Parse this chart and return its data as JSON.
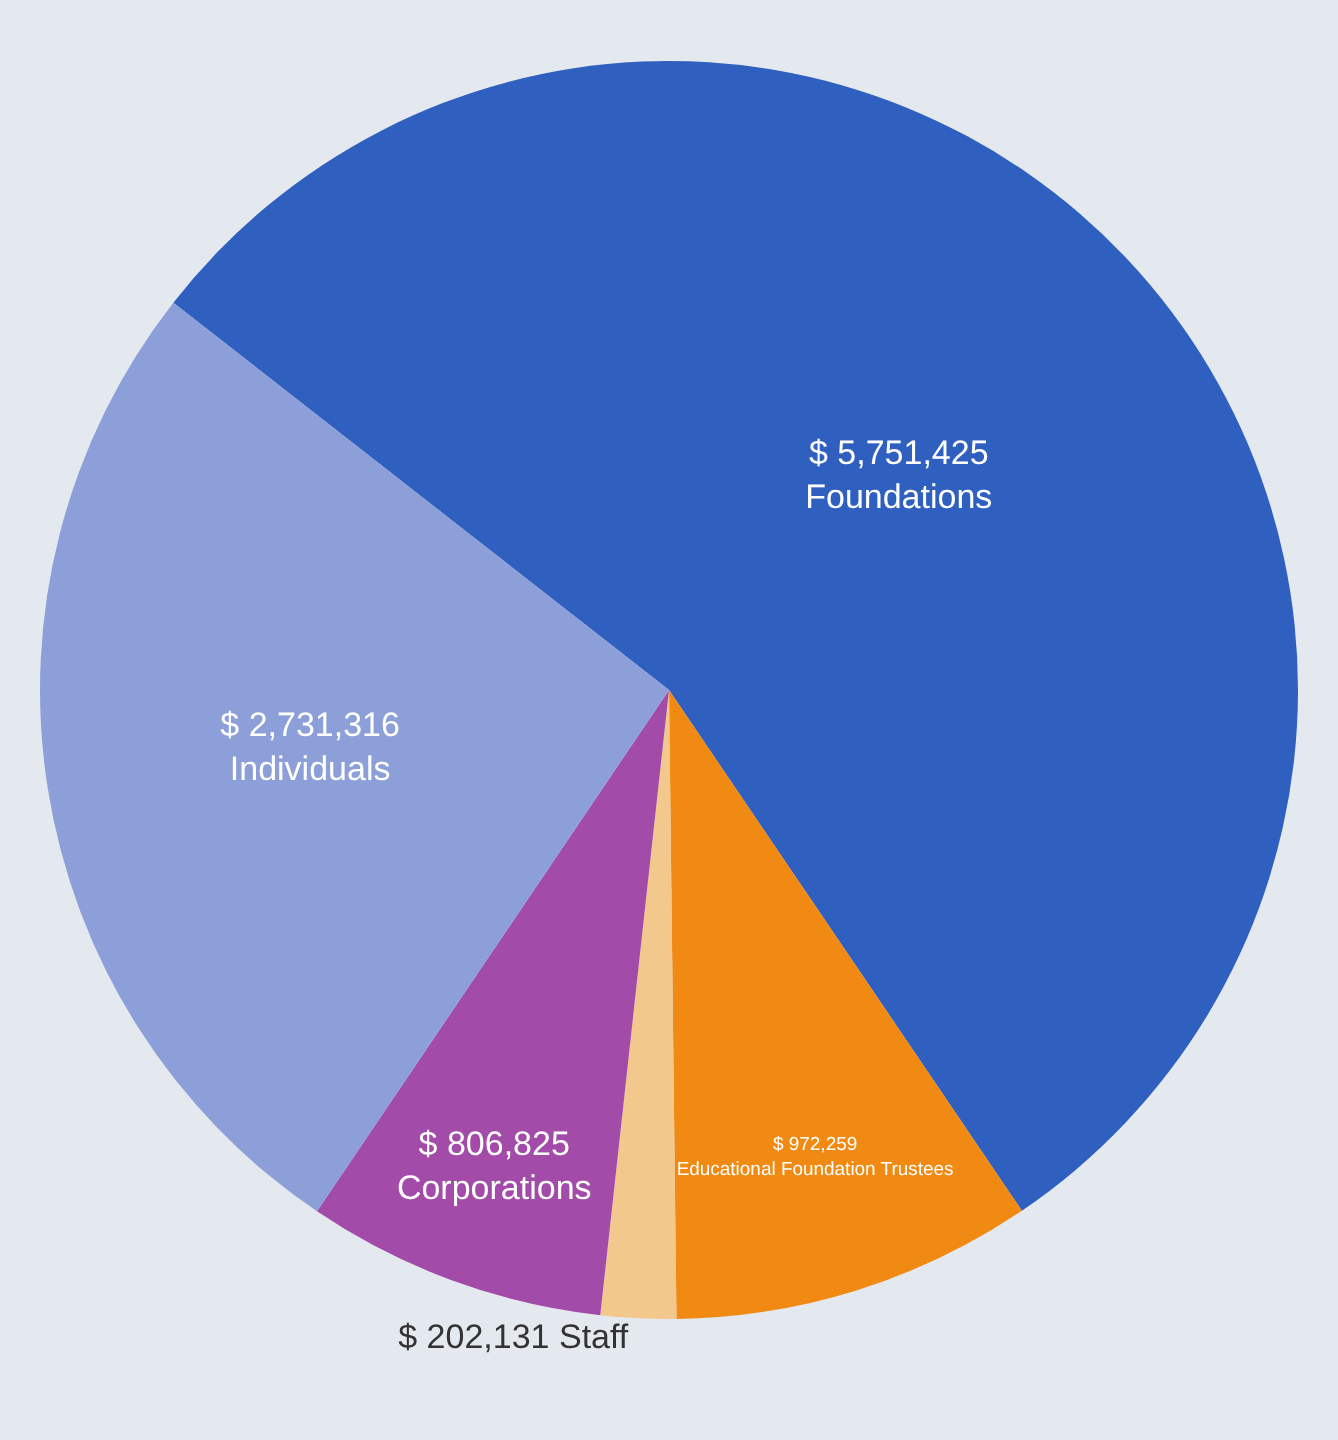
{
  "chart_data": {
    "type": "pie",
    "categories": [
      "Foundations",
      "Educational Foundation Trustees",
      "Staff",
      "Corporations",
      "Individuals"
    ],
    "values": [
      5751425,
      972259,
      202131,
      806825,
      2731316
    ],
    "value_labels": [
      "$ 5,751,425",
      "$ 972,259",
      "$ 202,131",
      "$ 806,825",
      "$ 2,731,316"
    ],
    "colors": [
      "#2f5fbf",
      "#f08a12",
      "#f3c88c",
      "#a24ba8",
      "#8c9fd8"
    ],
    "legend": false
  }
}
